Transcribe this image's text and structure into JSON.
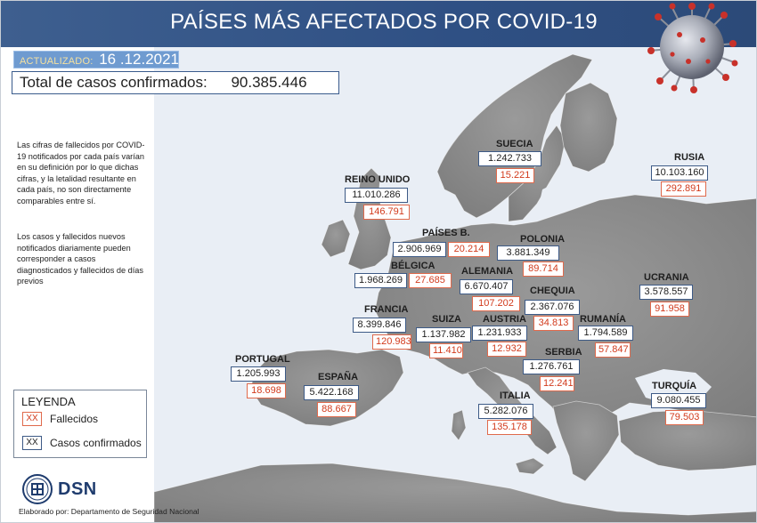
{
  "header": {
    "title": "PAÍSES MÁS AFECTADOS POR COVID-19"
  },
  "updated": {
    "label": "ACTUALIZADO:",
    "date": "16 .12.2021"
  },
  "total": {
    "label": "Total de casos confirmados:",
    "value": "90.385.446"
  },
  "notes": [
    "Las cifras de fallecidos por COVID-19 notificados por cada país varían en su definición por lo que dichas cifras, y la letalidad resultante en cada país, no son directamente comparables entre sí.",
    "Los casos y fallecidos nuevos notificados diariamente pueden corresponder a casos diagnosticados y fallecidos de días previos"
  ],
  "countries": {
    "suecia": {
      "name": "SUECIA",
      "cases": "1.242.733",
      "deaths": "15.221"
    },
    "rusia": {
      "name": "RUSIA",
      "cases": "10.103.160",
      "deaths": "292.891"
    },
    "reino_unido": {
      "name": "REINO UNIDO",
      "cases": "11.010.286",
      "deaths": "146.791"
    },
    "paises_b": {
      "name": "PAÍSES B.",
      "cases": "2.906.969",
      "deaths": "20.214"
    },
    "polonia": {
      "name": "POLONIA",
      "cases": "3.881.349",
      "deaths": "89.714"
    },
    "belgica": {
      "name": "BÉLGICA",
      "cases": "1.968.269",
      "deaths": "27.685"
    },
    "alemania": {
      "name": "ALEMANIA",
      "cases": "6.670.407",
      "deaths": "107.202"
    },
    "ucrania": {
      "name": "UCRANIA",
      "cases": "3.578.557",
      "deaths": "91.958"
    },
    "chequia": {
      "name": "CHEQUIA",
      "cases": "2.367.076",
      "deaths": "34.813"
    },
    "francia": {
      "name": "FRANCIA",
      "cases": "8.399.846",
      "deaths": "120.983"
    },
    "suiza": {
      "name": "SUIZA",
      "cases": "1.137.982",
      "deaths": "11.410"
    },
    "austria": {
      "name": "AUSTRIA",
      "cases": "1.231.933",
      "deaths": "12.932"
    },
    "rumania": {
      "name": "RUMANÍA",
      "cases": "1.794.589",
      "deaths": "57.847"
    },
    "portugal": {
      "name": "PORTUGAL",
      "cases": "1.205.993",
      "deaths": "18.698"
    },
    "serbia": {
      "name": "SERBIA",
      "cases": "1.276.761",
      "deaths": "12.241"
    },
    "espana": {
      "name": "ESPAÑA",
      "cases": "5.422.168",
      "deaths": "88.667"
    },
    "italia": {
      "name": "ITALIA",
      "cases": "5.282.076",
      "deaths": "135.178"
    },
    "turquia": {
      "name": "TURQUÍA",
      "cases": "9.080.455",
      "deaths": "79.503"
    }
  },
  "legend": {
    "title": "LEYENDA",
    "deaths_symbol": "XX",
    "deaths_label": "Fallecidos",
    "cases_symbol": "XX",
    "cases_label": "Casos confirmados"
  },
  "logo": {
    "text": "DSN"
  },
  "credit": "Elaborado por: Departamento de Seguridad Nacional",
  "colors": {
    "header": "#2f5084",
    "sea": "#e9eef5",
    "land": "#8c8c8c",
    "deaths": "#d23a1c",
    "cases_border": "#3d5a86"
  }
}
